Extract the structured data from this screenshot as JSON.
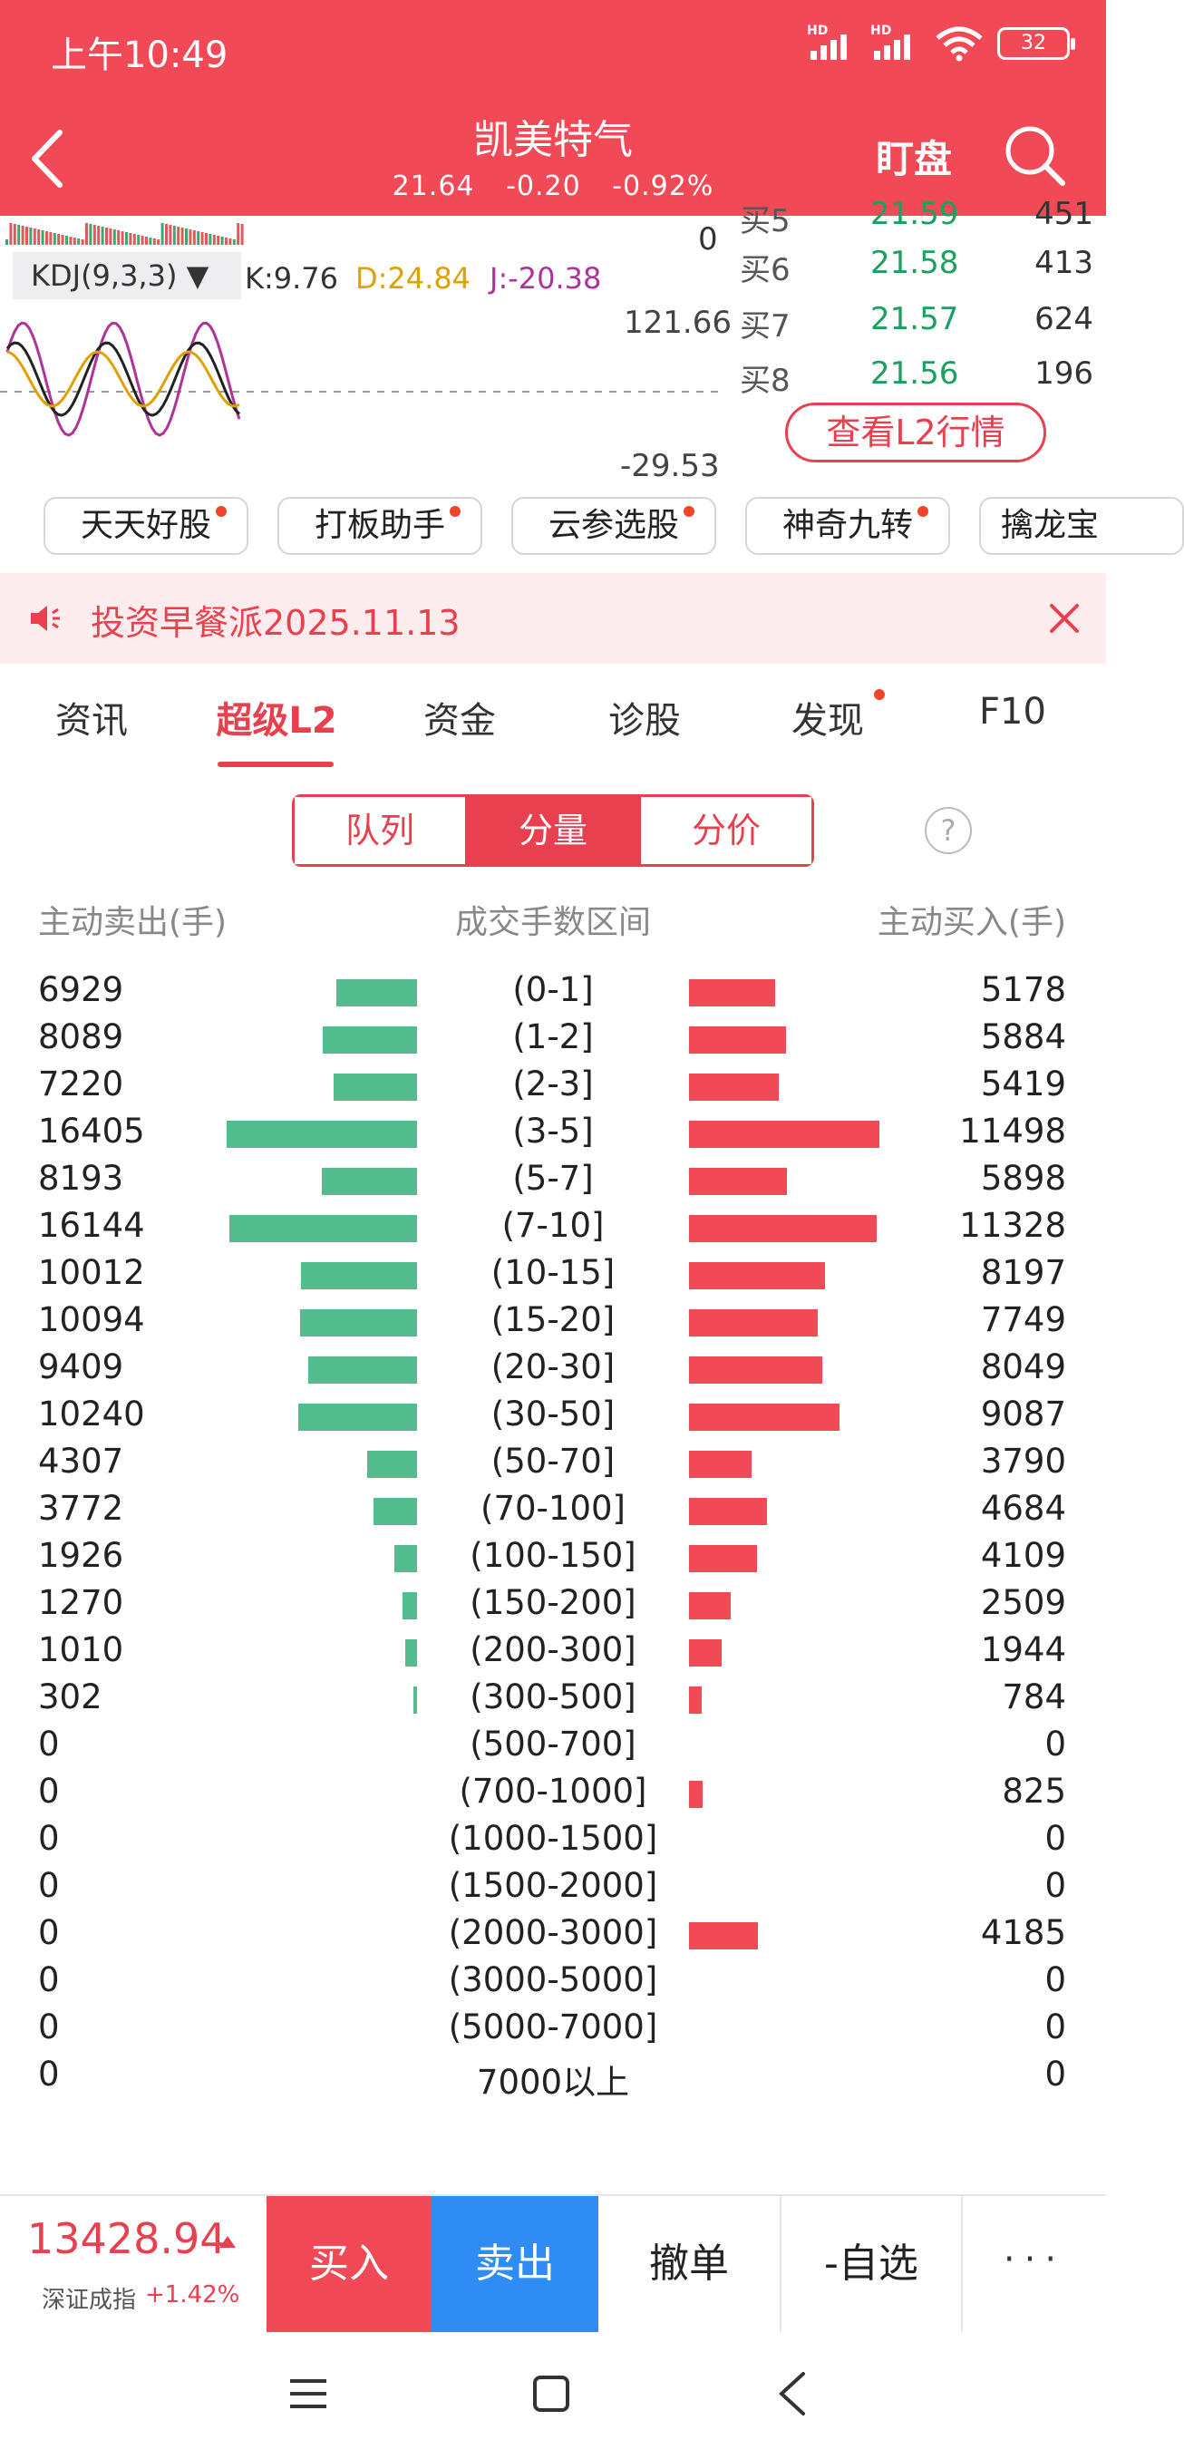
{
  "status": {
    "time": "上午10:49",
    "battery": "32",
    "hd": "HD"
  },
  "header": {
    "title": "凯美特气",
    "price": "21.64",
    "change": "-0.20",
    "change_pct": "-0.92%",
    "watch_label": "盯盘"
  },
  "chart": {
    "vol_zero": "0",
    "kdj_label": "KDJ(9,3,3) ▼",
    "k": "K:9.76",
    "d": "D:24.84",
    "j": "J:-20.38",
    "max": "121.66",
    "min": "-29.53",
    "colors": {
      "k": "#222222",
      "d": "#e0a000",
      "j": "#b0329b"
    }
  },
  "orderbook": {
    "rows": [
      {
        "level": "买5",
        "price": "21.59",
        "vol": "451"
      },
      {
        "level": "买6",
        "price": "21.58",
        "vol": "413"
      },
      {
        "level": "买7",
        "price": "21.57",
        "vol": "624"
      },
      {
        "level": "买8",
        "price": "21.56",
        "vol": "196"
      }
    ],
    "l2_button": "查看L2行情"
  },
  "chips": [
    "天天好股",
    "打板助手",
    "云参选股",
    "神奇九转",
    "擒龙宝"
  ],
  "notice": {
    "text": "投资早餐派2025.11.13"
  },
  "tabs": [
    "资讯",
    "超级L2",
    "资金",
    "诊股",
    "发现",
    "F10"
  ],
  "segments": [
    "队列",
    "分量",
    "分价"
  ],
  "help": "?",
  "dist": {
    "head_sell": "主动卖出(手)",
    "head_range": "成交手数区间",
    "head_buy": "主动买入(手)",
    "colors": {
      "sell": "#52bc8c",
      "buy": "#f24957"
    },
    "rows": [
      {
        "sell": "6929",
        "range": "(0-1]",
        "buy": "5178"
      },
      {
        "sell": "8089",
        "range": "(1-2]",
        "buy": "5884"
      },
      {
        "sell": "7220",
        "range": "(2-3]",
        "buy": "5419"
      },
      {
        "sell": "16405",
        "range": "(3-5]",
        "buy": "11498"
      },
      {
        "sell": "8193",
        "range": "(5-7]",
        "buy": "5898"
      },
      {
        "sell": "16144",
        "range": "(7-10]",
        "buy": "11328"
      },
      {
        "sell": "10012",
        "range": "(10-15]",
        "buy": "8197"
      },
      {
        "sell": "10094",
        "range": "(15-20]",
        "buy": "7749"
      },
      {
        "sell": "9409",
        "range": "(20-30]",
        "buy": "8049"
      },
      {
        "sell": "10240",
        "range": "(30-50]",
        "buy": "9087"
      },
      {
        "sell": "4307",
        "range": "(50-70]",
        "buy": "3790"
      },
      {
        "sell": "3772",
        "range": "(70-100]",
        "buy": "4684"
      },
      {
        "sell": "1926",
        "range": "(100-150]",
        "buy": "4109"
      },
      {
        "sell": "1270",
        "range": "(150-200]",
        "buy": "2509"
      },
      {
        "sell": "1010",
        "range": "(200-300]",
        "buy": "1944"
      },
      {
        "sell": "302",
        "range": "(300-500]",
        "buy": "784"
      },
      {
        "sell": "0",
        "range": "(500-700]",
        "buy": "0"
      },
      {
        "sell": "0",
        "range": "(700-1000]",
        "buy": "825"
      },
      {
        "sell": "0",
        "range": "(1000-1500]",
        "buy": "0"
      },
      {
        "sell": "0",
        "range": "(1500-2000]",
        "buy": "0"
      },
      {
        "sell": "0",
        "range": "(2000-3000]",
        "buy": "4185"
      },
      {
        "sell": "0",
        "range": "(3000-5000]",
        "buy": "0"
      },
      {
        "sell": "0",
        "range": "(5000-7000]",
        "buy": "0"
      },
      {
        "sell": "0",
        "range": "7000以上",
        "buy": "0"
      }
    ]
  },
  "bottom": {
    "index_value": "13428.94",
    "index_name": "深证成指",
    "index_change": "+1.42%",
    "buy": "买入",
    "sell": "卖出",
    "cancel": "撤单",
    "fav": "-自选",
    "more": "···"
  }
}
